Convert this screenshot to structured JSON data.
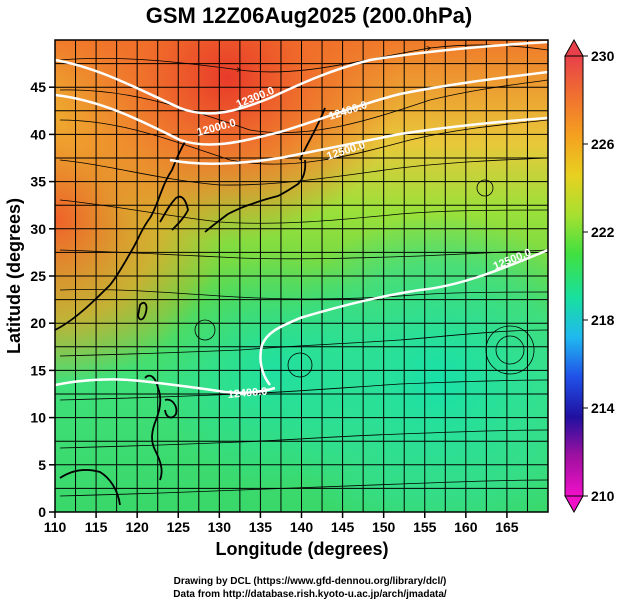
{
  "title": "GSM 12Z06Aug2025 (200.0hPa)",
  "x_axis_label": "Longitude (degrees)",
  "y_axis_label": "Latitude  (degrees)",
  "x_ticks": [
    "110",
    "115",
    "120",
    "125",
    "130",
    "135",
    "140",
    "145",
    "150",
    "155",
    "160",
    "165"
  ],
  "y_ticks": [
    "0",
    "5",
    "10",
    "15",
    "20",
    "25",
    "30",
    "35",
    "40",
    "45"
  ],
  "colorbar": {
    "ticks": [
      "230",
      "226",
      "222",
      "218",
      "214",
      "210"
    ],
    "colors": [
      "#e8404a",
      "#f07030",
      "#f5a020",
      "#e8d020",
      "#a8e030",
      "#40e040",
      "#18e0a0",
      "#20b8f0",
      "#2050e8",
      "#2010a0",
      "#a010a0",
      "#f010c8"
    ]
  },
  "contour_labels": [
    "12300.0",
    "12000.0",
    "12400.0",
    "12500.0",
    "12500.0",
    "12400.0"
  ],
  "credits": {
    "line1": "Drawing by DCL (https://www.gfd-dennou.org/library/dcl/)",
    "line2": "Data from http://database.rish.kyoto-u.ac.jp/arch/jmadata/"
  },
  "map": {
    "lon_range": [
      110,
      170
    ],
    "lat_range": [
      0,
      50
    ]
  }
}
